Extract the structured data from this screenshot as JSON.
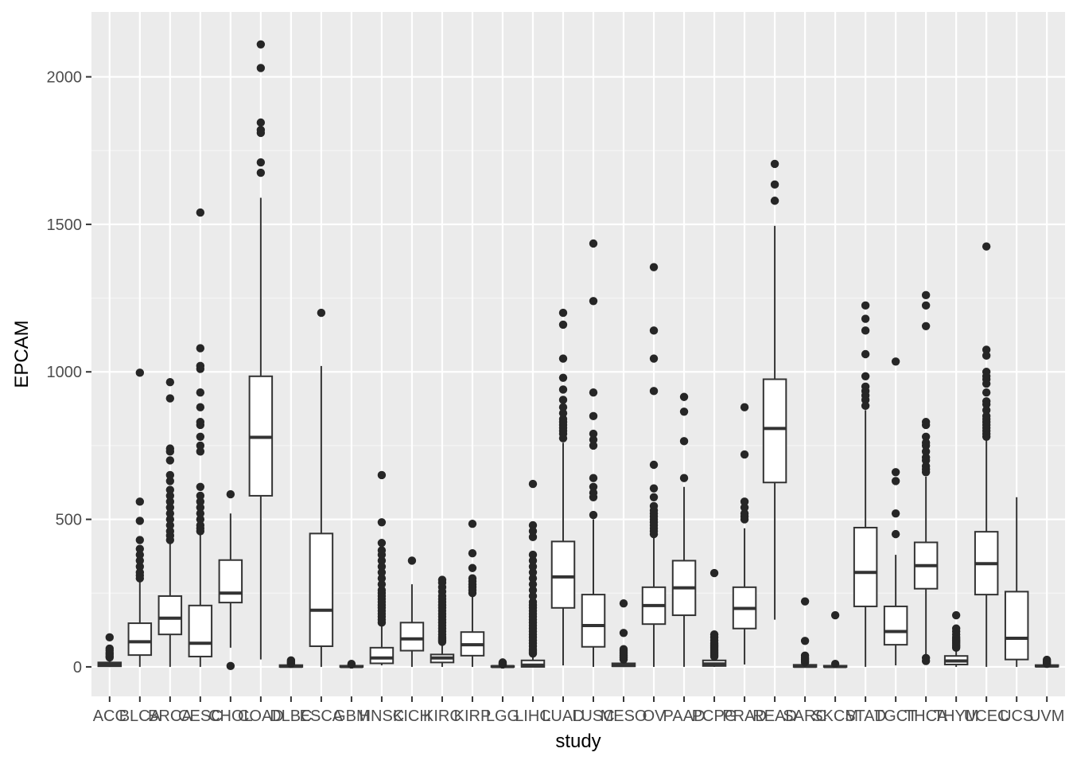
{
  "chart_data": {
    "type": "box",
    "xlabel": "study",
    "ylabel": "EPCAM",
    "ylim": [
      -100,
      2220
    ],
    "yticks": [
      0,
      500,
      1000,
      1500,
      2000
    ],
    "grid": true,
    "categories": [
      "ACC",
      "BLCA",
      "BRCA",
      "CESC",
      "CHOL",
      "COAD",
      "DLBC",
      "ESCA",
      "GBM",
      "HNSC",
      "KICH",
      "KIRC",
      "KIRP",
      "LGG",
      "LIHC",
      "LUAD",
      "LUSC",
      "MESO",
      "OV",
      "PAAD",
      "PCPG",
      "PRAD",
      "READ",
      "SARC",
      "SKCM",
      "STAD",
      "TGCT",
      "THCA",
      "THYM",
      "UCEC",
      "UCS",
      "UVM"
    ],
    "boxes": [
      {
        "q1": 2,
        "median": 8,
        "q3": 15,
        "low": 0,
        "high": 28,
        "outliers": [
          32,
          36,
          42,
          48,
          55,
          62,
          100
        ]
      },
      {
        "q1": 40,
        "median": 85,
        "q3": 148,
        "low": 0,
        "high": 290,
        "outliers": [
          300,
          310,
          320,
          340,
          360,
          380,
          400,
          430,
          495,
          560,
          997
        ]
      },
      {
        "q1": 110,
        "median": 165,
        "q3": 240,
        "low": 0,
        "high": 420,
        "outliers": [
          430,
          445,
          460,
          480,
          500,
          520,
          540,
          560,
          580,
          600,
          630,
          650,
          700,
          730,
          740,
          910,
          965
        ]
      },
      {
        "q1": 35,
        "median": 80,
        "q3": 208,
        "low": 0,
        "high": 450,
        "outliers": [
          460,
          470,
          480,
          500,
          520,
          540,
          560,
          580,
          610,
          730,
          750,
          780,
          820,
          830,
          880,
          930,
          1010,
          1020,
          1080,
          1540
        ]
      },
      {
        "q1": 218,
        "median": 250,
        "q3": 362,
        "low": 65,
        "high": 520,
        "outliers": [
          3,
          585
        ]
      },
      {
        "q1": 580,
        "median": 778,
        "q3": 985,
        "low": 25,
        "high": 1590,
        "outliers": [
          1675,
          1710,
          1810,
          1820,
          1845,
          2030,
          2110
        ]
      },
      {
        "q1": 0,
        "median": 2,
        "q3": 6,
        "low": 0,
        "high": 8,
        "outliers": [
          10,
          12,
          15,
          18,
          22
        ]
      },
      {
        "q1": 70,
        "median": 192,
        "q3": 452,
        "low": 0,
        "high": 1020,
        "outliers": [
          1200
        ]
      },
      {
        "q1": 0,
        "median": 1,
        "q3": 4,
        "low": 0,
        "high": 6,
        "outliers": [
          8,
          10
        ]
      },
      {
        "q1": 12,
        "median": 30,
        "q3": 65,
        "low": 5,
        "high": 140,
        "outliers": [
          150,
          160,
          170,
          180,
          190,
          200,
          210,
          220,
          230,
          240,
          250,
          260,
          280,
          300,
          320,
          340,
          360,
          380,
          395,
          420,
          490,
          650
        ]
      },
      {
        "q1": 55,
        "median": 95,
        "q3": 150,
        "low": 0,
        "high": 280,
        "outliers": [
          360
        ]
      },
      {
        "q1": 15,
        "median": 30,
        "q3": 42,
        "low": 0,
        "high": 80,
        "outliers": [
          85,
          90,
          95,
          100,
          110,
          120,
          130,
          140,
          150,
          160,
          170,
          180,
          190,
          200,
          210,
          220,
          230,
          240,
          255,
          270,
          285,
          295
        ]
      },
      {
        "q1": 38,
        "median": 75,
        "q3": 118,
        "low": 0,
        "high": 240,
        "outliers": [
          250,
          260,
          270,
          280,
          290,
          300,
          335,
          385,
          485
        ]
      },
      {
        "q1": 0,
        "median": 1,
        "q3": 3,
        "low": 0,
        "high": 5,
        "outliers": [
          8,
          10,
          12,
          15
        ]
      },
      {
        "q1": 0,
        "median": 6,
        "q3": 22,
        "low": 0,
        "high": 40,
        "outliers": [
          45,
          50,
          55,
          60,
          70,
          80,
          90,
          100,
          110,
          120,
          130,
          140,
          150,
          160,
          170,
          180,
          190,
          200,
          210,
          220,
          240,
          260,
          280,
          300,
          320,
          340,
          360,
          380,
          440,
          460,
          480,
          620
        ]
      },
      {
        "q1": 200,
        "median": 305,
        "q3": 425,
        "low": 5,
        "high": 760,
        "outliers": [
          775,
          790,
          800,
          810,
          820,
          830,
          840,
          860,
          880,
          905,
          940,
          980,
          1045,
          1160,
          1200
        ]
      },
      {
        "q1": 68,
        "median": 140,
        "q3": 245,
        "low": 0,
        "high": 500,
        "outliers": [
          515,
          575,
          590,
          610,
          640,
          750,
          770,
          790,
          850,
          930,
          1240,
          1435
        ]
      },
      {
        "q1": 2,
        "median": 5,
        "q3": 12,
        "low": 0,
        "high": 20,
        "outliers": [
          25,
          30,
          35,
          40,
          45,
          50,
          55,
          60,
          115,
          215
        ]
      },
      {
        "q1": 145,
        "median": 208,
        "q3": 270,
        "low": 0,
        "high": 440,
        "outliers": [
          450,
          460,
          470,
          480,
          490,
          500,
          510,
          520,
          530,
          545,
          575,
          605,
          685,
          935,
          1045,
          1140,
          1355
        ]
      },
      {
        "q1": 175,
        "median": 268,
        "q3": 360,
        "low": 0,
        "high": 610,
        "outliers": [
          640,
          765,
          865,
          915
        ]
      },
      {
        "q1": 3,
        "median": 10,
        "q3": 22,
        "low": 0,
        "high": 30,
        "outliers": [
          35,
          40,
          45,
          50,
          55,
          60,
          65,
          70,
          75,
          80,
          90,
          100,
          110,
          318
        ]
      },
      {
        "q1": 130,
        "median": 198,
        "q3": 270,
        "low": 8,
        "high": 470,
        "outliers": [
          500,
          510,
          520,
          540,
          560,
          720,
          880
        ]
      },
      {
        "q1": 625,
        "median": 808,
        "q3": 975,
        "low": 160,
        "high": 1495,
        "outliers": [
          1580,
          1635,
          1705
        ]
      },
      {
        "q1": 0,
        "median": 2,
        "q3": 7,
        "low": 0,
        "high": 10,
        "outliers": [
          15,
          20,
          25,
          30,
          38,
          88,
          222
        ]
      },
      {
        "q1": 0,
        "median": 1,
        "q3": 4,
        "low": 0,
        "high": 6,
        "outliers": [
          10,
          175
        ]
      },
      {
        "q1": 205,
        "median": 320,
        "q3": 472,
        "low": 0,
        "high": 870,
        "outliers": [
          885,
          905,
          920,
          935,
          950,
          985,
          1060,
          1140,
          1180,
          1225
        ]
      },
      {
        "q1": 75,
        "median": 120,
        "q3": 205,
        "low": 5,
        "high": 380,
        "outliers": [
          450,
          520,
          630,
          660,
          1035
        ]
      },
      {
        "q1": 265,
        "median": 343,
        "q3": 422,
        "low": 40,
        "high": 645,
        "outliers": [
          20,
          30,
          660,
          670,
          680,
          700,
          710,
          730,
          750,
          760,
          780,
          820,
          830,
          1155,
          1225,
          1260
        ]
      },
      {
        "q1": 8,
        "median": 20,
        "q3": 37,
        "low": 0,
        "high": 60,
        "outliers": [
          65,
          70,
          75,
          80,
          85,
          90,
          95,
          100,
          110,
          120,
          130,
          175
        ]
      },
      {
        "q1": 245,
        "median": 350,
        "q3": 458,
        "low": 0,
        "high": 770,
        "outliers": [
          780,
          790,
          800,
          810,
          820,
          830,
          840,
          850,
          870,
          890,
          900,
          930,
          960,
          975,
          985,
          1000,
          1055,
          1075,
          1425
        ]
      },
      {
        "q1": 25,
        "median": 97,
        "q3": 255,
        "low": 0,
        "high": 575,
        "outliers": []
      },
      {
        "q1": 1,
        "median": 3,
        "q3": 6,
        "low": 0,
        "high": 8,
        "outliers": [
          10,
          14,
          18,
          24
        ]
      }
    ]
  }
}
